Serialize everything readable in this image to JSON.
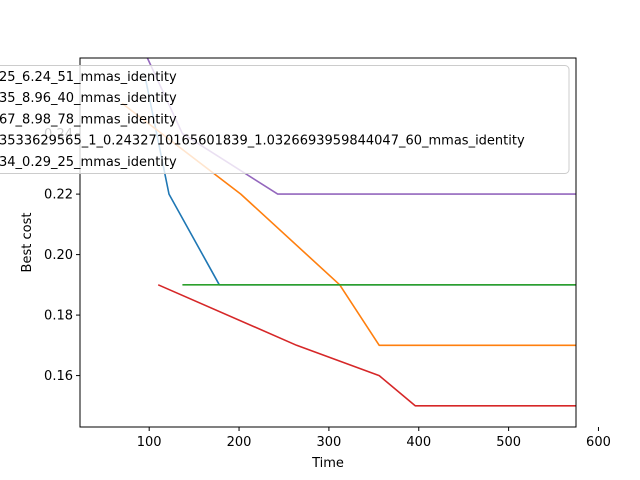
{
  "chart_data": {
    "type": "line",
    "title": "",
    "xlabel": "Time",
    "ylabel": "Best cost",
    "xlim": [
      23,
      575
    ],
    "ylim": [
      0.143,
      0.265
    ],
    "xticks": [
      100,
      200,
      300,
      400,
      500,
      600
    ],
    "yticks": [
      0.16,
      0.18,
      0.2,
      0.22,
      0.24
    ],
    "ytick_labels": [
      "0.16",
      "0.18",
      "0.20",
      "0.22",
      "0.24"
    ],
    "grid": false,
    "legend_position": "top-left",
    "series": [
      {
        "name": "25_6.24_51_mmas_identity",
        "color": "#1f77b4",
        "points": [
          [
            96,
            0.258
          ],
          [
            122,
            0.22
          ],
          [
            165,
            0.197
          ],
          [
            178,
            0.19
          ],
          [
            612,
            0.19
          ]
        ]
      },
      {
        "name": "35_8.96_40_mmas_identity",
        "color": "#ff7f0e",
        "points": [
          [
            70,
            0.25
          ],
          [
            202,
            0.22
          ],
          [
            312,
            0.19
          ],
          [
            356,
            0.17
          ],
          [
            640,
            0.17
          ]
        ]
      },
      {
        "name": "67_8.98_78_mmas_identity",
        "color": "#2ca02c",
        "points": [
          [
            137,
            0.19
          ],
          [
            618,
            0.19
          ]
        ]
      },
      {
        "name": "3533629565_1_0.2432710165601839_1.0326693959844047_60_mmas_identity",
        "color": "#d62728",
        "points": [
          [
            110,
            0.19
          ],
          [
            264,
            0.17
          ],
          [
            356,
            0.16
          ],
          [
            396,
            0.15
          ],
          [
            608,
            0.15
          ]
        ]
      },
      {
        "name": "34_0.29_25_mmas_identity",
        "color": "#9467bd",
        "points": [
          [
            98,
            0.265
          ],
          [
            137,
            0.24
          ],
          [
            243,
            0.22
          ],
          [
            615,
            0.22
          ]
        ]
      }
    ]
  }
}
